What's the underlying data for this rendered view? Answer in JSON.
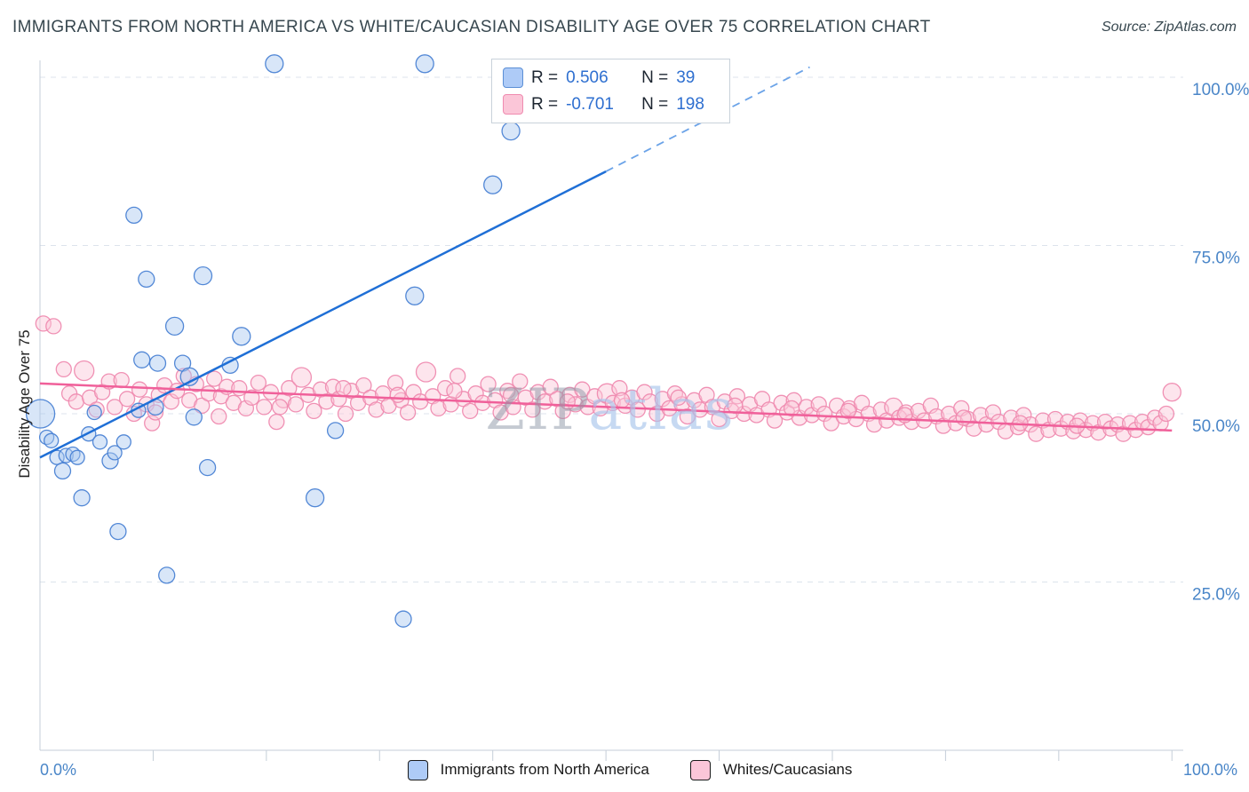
{
  "header": {
    "title": "IMMIGRANTS FROM NORTH AMERICA VS WHITE/CAUCASIAN DISABILITY AGE OVER 75 CORRELATION CHART",
    "source": "Source: ZipAtlas.com"
  },
  "watermark": {
    "part1": "ZIP",
    "part2": "atlas"
  },
  "legend_box": {
    "rows": [
      {
        "r_label": "R =",
        "r_value": "0.506",
        "n_label": "N =",
        "n_value": "39"
      },
      {
        "r_label": "R =",
        "r_value": "-0.701",
        "n_label": "N =",
        "n_value": "198"
      }
    ]
  },
  "bottom_legend": [
    {
      "label": "Immigrants from North America",
      "fill": "#aecbf7",
      "border": "#5b8fd6"
    },
    {
      "label": "Whites/Caucasians",
      "fill": "#fbc6d8",
      "border": "#ef8bb0"
    }
  ],
  "chart_data": {
    "type": "scatter",
    "title": "Immigrants from North America vs White/Caucasian Disability Age Over 75",
    "ylabel": "Disability Age Over 75",
    "xlim": [
      0,
      101
    ],
    "ylim": [
      0,
      102.5
    ],
    "x_ticks": [
      10,
      20,
      30,
      40,
      50,
      60,
      70,
      80,
      90,
      100
    ],
    "x_axis_labels": [
      "0.0%",
      "100.0%"
    ],
    "y_ticks": [
      100,
      75,
      50,
      25
    ],
    "y_tick_labels": [
      "100.0%",
      "75.0%",
      "50.0%",
      "25.0%"
    ],
    "grid": true,
    "legend_position": "bottom",
    "series": [
      {
        "name": "Whites/Caucasians",
        "fill": "#fbc6d8",
        "stroke": "#ef8bb0",
        "marker_radius": 8.5,
        "points": [
          [
            0.3,
            63.4
          ],
          [
            1.2,
            63.0
          ],
          [
            2.1,
            56.6
          ],
          [
            2.6,
            53.0
          ],
          [
            3.2,
            51.8
          ],
          [
            3.9,
            56.4,
            11
          ],
          [
            4.4,
            52.4
          ],
          [
            5.0,
            50.6
          ],
          [
            5.5,
            53.2
          ],
          [
            6.1,
            54.8
          ],
          [
            6.6,
            51.0
          ],
          [
            7.2,
            55.0
          ],
          [
            7.7,
            52.2
          ],
          [
            8.3,
            50.0
          ],
          [
            8.8,
            53.6
          ],
          [
            9.4,
            51.4
          ],
          [
            9.9,
            48.6
          ],
          [
            10.5,
            52.8
          ],
          [
            11.0,
            54.2
          ],
          [
            11.6,
            51.8
          ],
          [
            12.1,
            53.4
          ],
          [
            12.7,
            55.6
          ],
          [
            13.2,
            52.0
          ],
          [
            13.8,
            54.4
          ],
          [
            14.3,
            51.2
          ],
          [
            14.9,
            53.0
          ],
          [
            15.4,
            55.2
          ],
          [
            16.0,
            52.6
          ],
          [
            16.5,
            54.0
          ],
          [
            17.1,
            51.6
          ],
          [
            17.6,
            53.8
          ],
          [
            18.2,
            50.8
          ],
          [
            18.7,
            52.4
          ],
          [
            19.3,
            54.6
          ],
          [
            19.8,
            51.0
          ],
          [
            20.4,
            53.2
          ],
          [
            20.9,
            48.8
          ],
          [
            21.5,
            52.0
          ],
          [
            22.0,
            53.8
          ],
          [
            22.6,
            51.4
          ],
          [
            23.1,
            55.4,
            11
          ],
          [
            23.7,
            52.8
          ],
          [
            24.2,
            50.4
          ],
          [
            24.8,
            53.6
          ],
          [
            25.3,
            51.8
          ],
          [
            25.9,
            54.0
          ],
          [
            26.4,
            52.2
          ],
          [
            27.0,
            50.0
          ],
          [
            27.5,
            53.4
          ],
          [
            28.1,
            51.6
          ],
          [
            28.6,
            54.2
          ],
          [
            29.2,
            52.4
          ],
          [
            29.7,
            50.6
          ],
          [
            30.3,
            53.0
          ],
          [
            30.8,
            51.2
          ],
          [
            31.4,
            54.6
          ],
          [
            31.9,
            52.0
          ],
          [
            32.5,
            50.2
          ],
          [
            33.0,
            53.2
          ],
          [
            33.6,
            51.8
          ],
          [
            34.1,
            56.2,
            11
          ],
          [
            34.7,
            52.6
          ],
          [
            35.2,
            50.8
          ],
          [
            35.8,
            53.8
          ],
          [
            36.3,
            51.4
          ],
          [
            36.9,
            55.6
          ],
          [
            37.4,
            52.2
          ],
          [
            38.0,
            50.4
          ],
          [
            38.5,
            53.0
          ],
          [
            39.1,
            51.6
          ],
          [
            39.6,
            54.4
          ],
          [
            40.2,
            52.0
          ],
          [
            40.7,
            50.2
          ],
          [
            41.3,
            53.4
          ],
          [
            41.8,
            51.0
          ],
          [
            42.4,
            54.8
          ],
          [
            42.9,
            52.4
          ],
          [
            43.5,
            50.6
          ],
          [
            44.0,
            53.2
          ],
          [
            44.6,
            51.8
          ],
          [
            45.1,
            54.0
          ],
          [
            45.7,
            52.2
          ],
          [
            46.2,
            50.4
          ],
          [
            46.8,
            52.8
          ],
          [
            47.3,
            51.4
          ],
          [
            47.9,
            53.6
          ],
          [
            48.4,
            51.0
          ],
          [
            49.0,
            52.6
          ],
          [
            49.5,
            50.8
          ],
          [
            50.1,
            53.0,
            11
          ],
          [
            50.6,
            51.6
          ],
          [
            51.2,
            53.8
          ],
          [
            51.7,
            51.2
          ],
          [
            52.3,
            52.4
          ],
          [
            52.8,
            50.6
          ],
          [
            53.4,
            53.2
          ],
          [
            53.9,
            51.8
          ],
          [
            54.5,
            50.0
          ],
          [
            55.0,
            52.2
          ],
          [
            55.6,
            50.8
          ],
          [
            56.1,
            53.0
          ],
          [
            56.7,
            51.4
          ],
          [
            57.2,
            49.6
          ],
          [
            57.8,
            52.0
          ],
          [
            58.3,
            50.6
          ],
          [
            58.9,
            52.8
          ],
          [
            59.4,
            51.0
          ],
          [
            60.0,
            49.2
          ],
          [
            60.5,
            51.8
          ],
          [
            61.1,
            50.4
          ],
          [
            61.6,
            52.6
          ],
          [
            62.2,
            50.0
          ],
          [
            62.7,
            51.4
          ],
          [
            63.3,
            49.8
          ],
          [
            63.8,
            52.2
          ],
          [
            64.4,
            50.6
          ],
          [
            64.9,
            49.0
          ],
          [
            65.5,
            51.6
          ],
          [
            66.0,
            50.2
          ],
          [
            66.6,
            52.0
          ],
          [
            67.1,
            49.4
          ],
          [
            67.7,
            51.0
          ],
          [
            68.2,
            49.8
          ],
          [
            68.8,
            51.4
          ],
          [
            69.3,
            50.0
          ],
          [
            69.9,
            48.6
          ],
          [
            70.4,
            51.2
          ],
          [
            71.0,
            49.6
          ],
          [
            71.5,
            50.8
          ],
          [
            72.1,
            49.2
          ],
          [
            72.6,
            51.6
          ],
          [
            73.2,
            50.0
          ],
          [
            73.7,
            48.4
          ],
          [
            74.3,
            50.6
          ],
          [
            74.8,
            49.0
          ],
          [
            75.4,
            51.0,
            10
          ],
          [
            75.9,
            49.4
          ],
          [
            76.5,
            50.2
          ],
          [
            77.0,
            48.8
          ],
          [
            77.6,
            50.4
          ],
          [
            78.1,
            49.0
          ],
          [
            78.7,
            51.2
          ],
          [
            79.2,
            49.6
          ],
          [
            79.8,
            48.2
          ],
          [
            80.3,
            50.0
          ],
          [
            80.9,
            48.6
          ],
          [
            81.4,
            50.8
          ],
          [
            82.0,
            49.2
          ],
          [
            82.5,
            47.8
          ],
          [
            83.1,
            49.8
          ],
          [
            83.6,
            48.4
          ],
          [
            84.2,
            50.2
          ],
          [
            84.7,
            48.8
          ],
          [
            85.3,
            47.4
          ],
          [
            85.8,
            49.4
          ],
          [
            86.4,
            48.0
          ],
          [
            86.9,
            49.8
          ],
          [
            87.5,
            48.4
          ],
          [
            88.0,
            47.0
          ],
          [
            88.6,
            49.0
          ],
          [
            89.1,
            47.6
          ],
          [
            89.7,
            49.2
          ],
          [
            90.2,
            47.8
          ],
          [
            90.8,
            48.8
          ],
          [
            91.3,
            47.4
          ],
          [
            91.9,
            49.0
          ],
          [
            92.4,
            47.6
          ],
          [
            93.0,
            48.6
          ],
          [
            93.5,
            47.2
          ],
          [
            94.1,
            48.8
          ],
          [
            94.6,
            47.8
          ],
          [
            95.2,
            48.4
          ],
          [
            95.7,
            47.0
          ],
          [
            96.3,
            48.6
          ],
          [
            96.8,
            47.6
          ],
          [
            97.4,
            48.8
          ],
          [
            97.9,
            48.0
          ],
          [
            98.5,
            49.4
          ],
          [
            99.0,
            48.6
          ],
          [
            99.5,
            50.0
          ],
          [
            100.0,
            53.2,
            10
          ],
          [
            10.2,
            50.2
          ],
          [
            15.8,
            49.6
          ],
          [
            21.2,
            51.0
          ],
          [
            26.8,
            53.8
          ],
          [
            31.6,
            52.8
          ],
          [
            36.6,
            53.4
          ],
          [
            41.6,
            52.8
          ],
          [
            46.6,
            51.8
          ],
          [
            51.4,
            52.0
          ],
          [
            56.4,
            52.4
          ],
          [
            61.4,
            51.2
          ],
          [
            66.4,
            50.8
          ],
          [
            71.4,
            50.4
          ],
          [
            76.4,
            49.8
          ],
          [
            81.6,
            49.4
          ],
          [
            86.6,
            48.6
          ],
          [
            91.6,
            48.2
          ]
        ]
      },
      {
        "name": "Immigrants from North America",
        "fill": "#a8c7f0",
        "stroke": "#4a82d4",
        "marker_radius": 9,
        "points": [
          [
            0.05,
            50.0,
            16
          ],
          [
            0.6,
            46.5,
            8
          ],
          [
            1.0,
            46.0,
            8
          ],
          [
            1.5,
            43.5,
            8
          ],
          [
            2.0,
            41.5,
            9
          ],
          [
            2.3,
            43.8,
            8
          ],
          [
            2.9,
            44.0,
            8
          ],
          [
            3.3,
            43.5,
            8
          ],
          [
            3.7,
            37.5,
            9
          ],
          [
            4.3,
            47.0,
            8
          ],
          [
            4.8,
            50.2,
            8
          ],
          [
            5.3,
            45.8,
            8
          ],
          [
            6.2,
            43.0,
            9
          ],
          [
            6.6,
            44.2,
            8
          ],
          [
            6.9,
            32.5,
            9
          ],
          [
            7.4,
            45.8,
            8
          ],
          [
            8.3,
            79.5,
            9
          ],
          [
            8.7,
            50.5,
            8
          ],
          [
            9.0,
            58.0,
            9
          ],
          [
            9.4,
            70.0,
            9
          ],
          [
            10.2,
            51.0,
            9
          ],
          [
            10.4,
            57.5,
            9
          ],
          [
            11.2,
            26.0,
            9
          ],
          [
            11.9,
            63.0,
            10
          ],
          [
            12.6,
            57.5,
            9
          ],
          [
            13.2,
            55.5,
            10
          ],
          [
            13.6,
            49.5,
            9
          ],
          [
            14.4,
            70.5,
            10
          ],
          [
            14.8,
            42.0,
            9
          ],
          [
            16.8,
            57.2,
            9
          ],
          [
            17.8,
            61.5,
            10
          ],
          [
            20.7,
            102.0,
            10
          ],
          [
            24.3,
            37.5,
            10
          ],
          [
            26.1,
            47.5,
            9
          ],
          [
            32.1,
            19.5,
            9
          ],
          [
            33.1,
            67.5,
            10
          ],
          [
            34.0,
            102.0,
            10
          ],
          [
            40.0,
            84.0,
            10
          ],
          [
            41.6,
            92.0,
            10
          ]
        ]
      }
    ],
    "trend_lines": [
      {
        "name": "immigrants-trend",
        "r": 0.506,
        "n": 39,
        "color": "#1f6fd6",
        "solid": [
          [
            0,
            43.5
          ],
          [
            50,
            86
          ]
        ],
        "dashed": [
          [
            50,
            86
          ],
          [
            68,
            101.5
          ]
        ],
        "dashed_color": "#6ba3e8"
      },
      {
        "name": "whites-trend",
        "r": -0.701,
        "n": 198,
        "color": "#f0609a",
        "solid": [
          [
            0,
            54.5
          ],
          [
            100,
            47.5
          ]
        ]
      }
    ],
    "correlations": [
      {
        "series": "Immigrants from North America",
        "R": 0.506,
        "N": 39
      },
      {
        "series": "Whites/Caucasians",
        "R": -0.701,
        "N": 198
      }
    ]
  }
}
